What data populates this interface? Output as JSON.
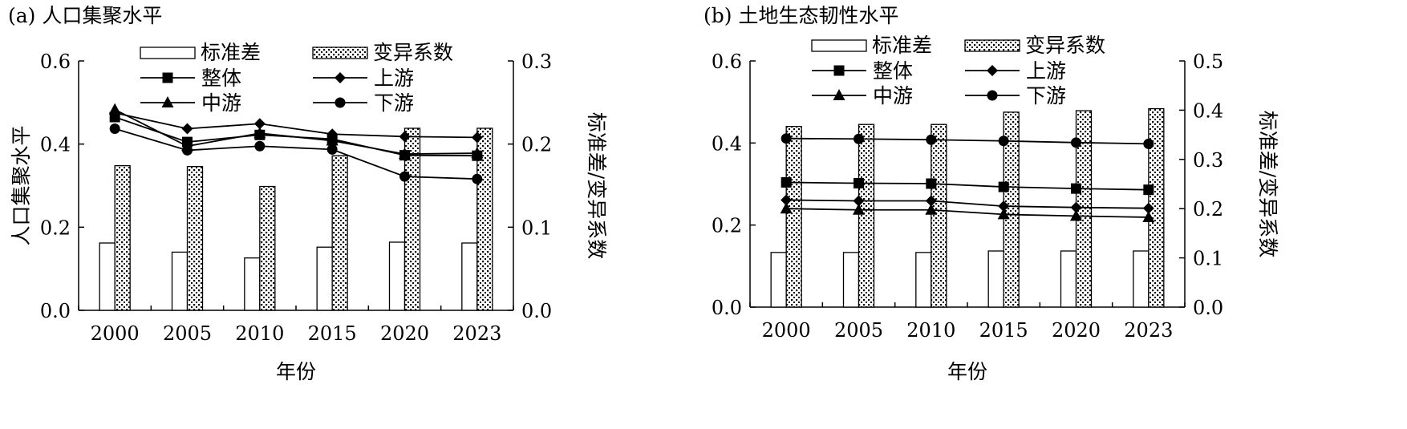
{
  "chart_data": [
    {
      "type": "bar+line",
      "title": "(a) 人口集聚水平",
      "xlabel": "年份",
      "ylabel": "人口集聚水平",
      "y2label": "标准差/变异系数",
      "categories": [
        "2000",
        "2005",
        "2010",
        "2015",
        "2020",
        "2023"
      ],
      "ylim": [
        0,
        0.6
      ],
      "yticks": [
        "0.0",
        "0.2",
        "0.4",
        "0.6"
      ],
      "y2lim": [
        0,
        0.3
      ],
      "y2ticks": [
        "0.0",
        "0.1",
        "0.2",
        "0.3"
      ],
      "bar_series": [
        {
          "name": "标准差",
          "pattern": "hollow",
          "values": [
            0.081,
            0.07,
            0.063,
            0.076,
            0.082,
            0.081
          ]
        },
        {
          "name": "变异系数",
          "pattern": "dotted",
          "values": [
            0.174,
            0.173,
            0.149,
            0.186,
            0.219,
            0.219
          ]
        }
      ],
      "line_series": [
        {
          "name": "整体",
          "marker": "square",
          "values": [
            0.465,
            0.405,
            0.422,
            0.412,
            0.373,
            0.372
          ]
        },
        {
          "name": "上游",
          "marker": "diamond",
          "values": [
            0.475,
            0.437,
            0.449,
            0.424,
            0.418,
            0.416
          ]
        },
        {
          "name": "中游",
          "marker": "triangle",
          "values": [
            0.483,
            0.395,
            0.426,
            0.408,
            0.376,
            0.378
          ]
        },
        {
          "name": "下游",
          "marker": "circle",
          "values": [
            0.437,
            0.385,
            0.395,
            0.387,
            0.322,
            0.316
          ]
        }
      ]
    },
    {
      "type": "bar+line",
      "title": "(b) 土地生态韧性水平",
      "xlabel": "年份",
      "ylabel": "土地生态韧性水平",
      "y2label": "标准差/变异系数",
      "categories": [
        "2000",
        "2005",
        "2010",
        "2015",
        "2020",
        "2023"
      ],
      "ylim": [
        0,
        0.6
      ],
      "yticks": [
        "0.0",
        "0.2",
        "0.4",
        "0.6"
      ],
      "y2lim": [
        0,
        0.5
      ],
      "y2ticks": [
        "0.0",
        "0.1",
        "0.2",
        "0.3",
        "0.4",
        "0.5"
      ],
      "bar_series": [
        {
          "name": "标准差",
          "pattern": "hollow",
          "values": [
            0.111,
            0.111,
            0.111,
            0.114,
            0.114,
            0.114
          ]
        },
        {
          "name": "变异系数",
          "pattern": "dotted",
          "values": [
            0.367,
            0.371,
            0.371,
            0.396,
            0.399,
            0.403
          ]
        }
      ],
      "line_series": [
        {
          "name": "整体",
          "marker": "square",
          "values": [
            0.304,
            0.302,
            0.301,
            0.293,
            0.289,
            0.286
          ]
        },
        {
          "name": "上游",
          "marker": "diamond",
          "values": [
            0.261,
            0.259,
            0.259,
            0.246,
            0.243,
            0.241
          ]
        },
        {
          "name": "中游",
          "marker": "triangle",
          "values": [
            0.24,
            0.237,
            0.237,
            0.226,
            0.222,
            0.219
          ]
        },
        {
          "name": "下游",
          "marker": "circle",
          "values": [
            0.411,
            0.41,
            0.408,
            0.405,
            0.401,
            0.398
          ]
        }
      ]
    }
  ]
}
